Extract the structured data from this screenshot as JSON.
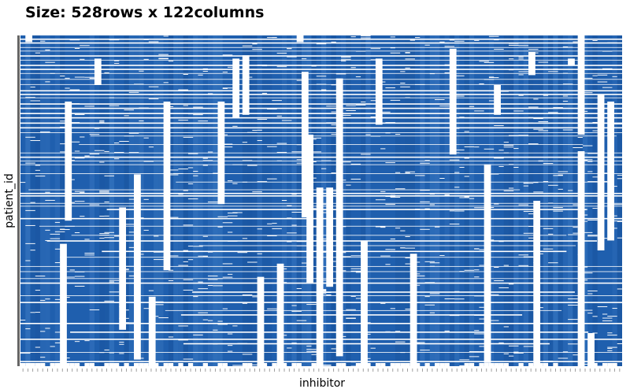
{
  "title": "Size: 528rows x 122columns",
  "chart_data": {
    "type": "heatmap",
    "title": "Size: 528rows x 122columns",
    "n_rows": 528,
    "n_cols": 122,
    "xlabel": "inhibitor",
    "ylabel": "patient_id",
    "x_tick_labels_visible": false,
    "y_tick_labels_visible": false,
    "grid": false,
    "legend": "none",
    "missing_value_color": "#ffffff",
    "colors": {
      "base": "#1f5fae",
      "dark": "#18529c",
      "light": "#3a78c2",
      "y_axis_bar": "#666666"
    }
  }
}
